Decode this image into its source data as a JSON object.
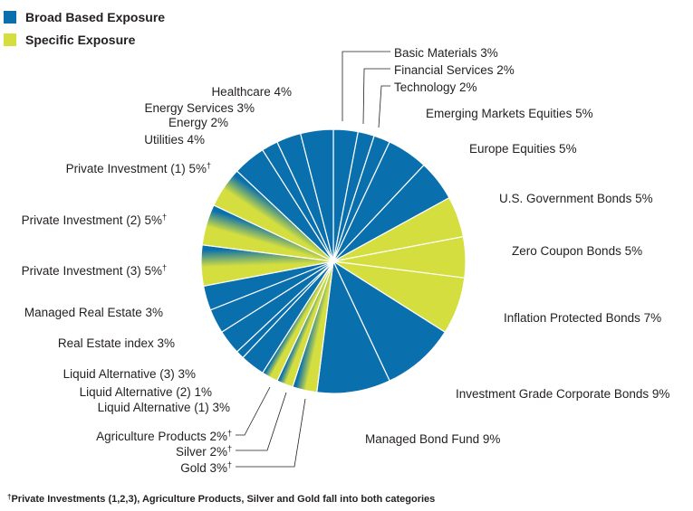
{
  "chart_data": {
    "type": "pie",
    "title": "",
    "legend": {
      "placement": "top-left",
      "entries": [
        {
          "name": "Broad Based Exposure",
          "color": "#0a6fad"
        },
        {
          "name": "Specific Exposure",
          "color": "#d4df3f"
        }
      ]
    },
    "slices": [
      {
        "label": "Basic Materials 3%",
        "value": 3,
        "category": "broad"
      },
      {
        "label": "Financial Services 2%",
        "value": 2,
        "category": "broad"
      },
      {
        "label": "Technology 2%",
        "value": 2,
        "category": "broad"
      },
      {
        "label": "Emerging Markets Equities 5%",
        "value": 5,
        "category": "broad"
      },
      {
        "label": "Europe Equities 5%",
        "value": 5,
        "category": "broad"
      },
      {
        "label": "U.S. Government Bonds 5%",
        "value": 5,
        "category": "specific"
      },
      {
        "label": "Zero Coupon Bonds 5%",
        "value": 5,
        "category": "specific"
      },
      {
        "label": "Inflation Protected Bonds 7%",
        "value": 7,
        "category": "specific"
      },
      {
        "label": "Investment Grade Corporate Bonds 9%",
        "value": 9,
        "category": "broad"
      },
      {
        "label": "Managed Bond Fund 9%",
        "value": 9,
        "category": "broad"
      },
      {
        "label": "Gold 3%",
        "value": 3,
        "category": "both",
        "dagger": true
      },
      {
        "label": "Silver 2%",
        "value": 2,
        "category": "both",
        "dagger": true
      },
      {
        "label": "Agriculture Products 2%",
        "value": 2,
        "category": "both",
        "dagger": true
      },
      {
        "label": "Liquid Alternative (1) 3%",
        "value": 3,
        "category": "broad"
      },
      {
        "label": "Liquid Alternative (2) 1%",
        "value": 1,
        "category": "broad"
      },
      {
        "label": "Liquid Alternative (3) 3%",
        "value": 3,
        "category": "broad"
      },
      {
        "label": "Real Estate index 3%",
        "value": 3,
        "category": "broad"
      },
      {
        "label": "Managed Real Estate 3%",
        "value": 3,
        "category": "broad"
      },
      {
        "label": "Private Investment (3) 5%",
        "value": 5,
        "category": "both",
        "dagger": true
      },
      {
        "label": "Private Investment (2) 5%",
        "value": 5,
        "category": "both",
        "dagger": true
      },
      {
        "label": "Private Investment (1) 5%",
        "value": 5,
        "category": "both",
        "dagger": true
      },
      {
        "label": "Utilities 4%",
        "value": 4,
        "category": "broad"
      },
      {
        "label": "Energy 2%",
        "value": 2,
        "category": "broad"
      },
      {
        "label": "Energy Services 3%",
        "value": 3,
        "category": "broad"
      },
      {
        "label": "Healthcare 4%",
        "value": 4,
        "category": "broad"
      }
    ],
    "dagger_symbol": "†",
    "footnote": {
      "symbol": "†",
      "text": "Private Investments (1,2,3), Agriculture Products, Silver and Gold fall into both categories"
    },
    "colors": {
      "broad": "#0a6fad",
      "specific": "#d4df3f",
      "edge": "#ffffff"
    }
  }
}
